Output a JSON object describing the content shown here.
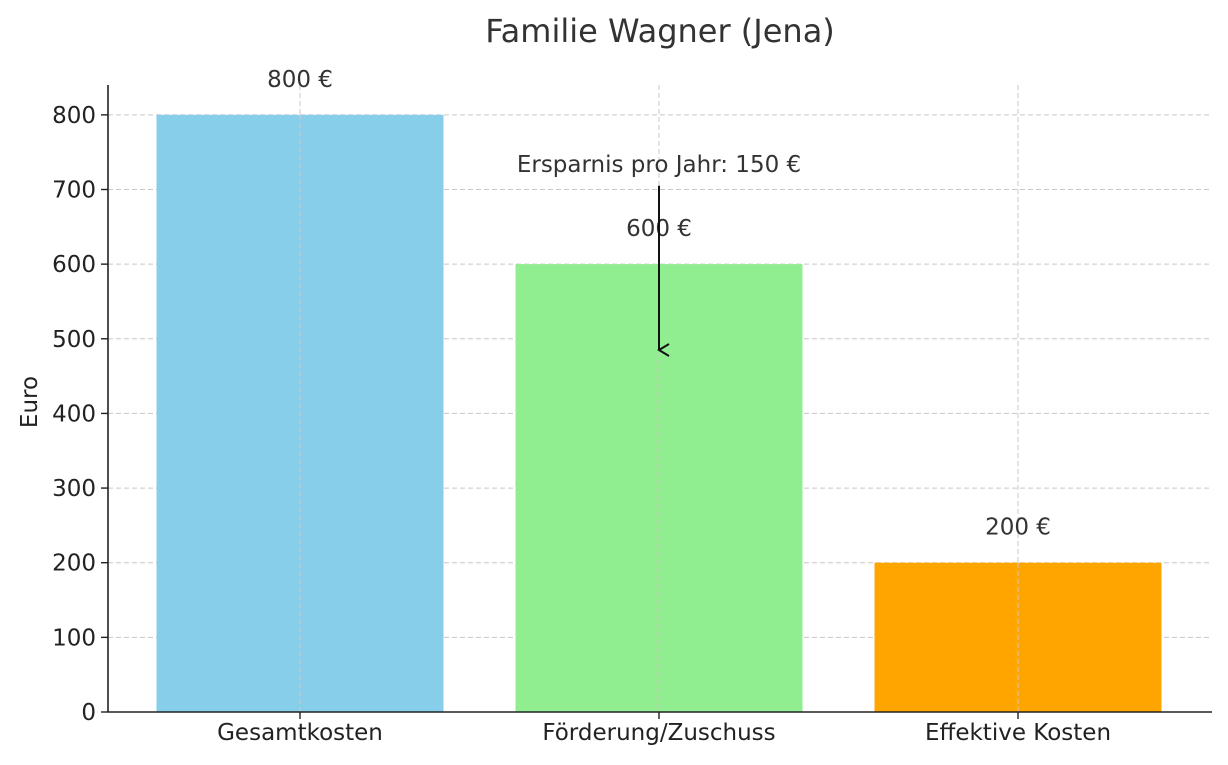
{
  "chart_data": {
    "type": "bar",
    "title": "Familie Wagner (Jena)",
    "xlabel": "",
    "ylabel": "Euro",
    "categories": [
      "Gesamtkosten",
      "Förderung/Zuschuss",
      "Effektive Kosten"
    ],
    "values": [
      800,
      600,
      200
    ],
    "value_labels": [
      "800 €",
      "600 €",
      "200 €"
    ],
    "colors": [
      "#87ceeb",
      "#90ee90",
      "#ffa500"
    ],
    "ylim": [
      0,
      840
    ],
    "yticks": [
      0,
      100,
      200,
      300,
      400,
      500,
      600,
      700,
      800
    ],
    "grid": true,
    "annotation": {
      "text": "Ersparnis pro Jahr: 150 €",
      "category": "Förderung/Zuschuss",
      "arrow_from": 705,
      "arrow_to": 485
    }
  }
}
